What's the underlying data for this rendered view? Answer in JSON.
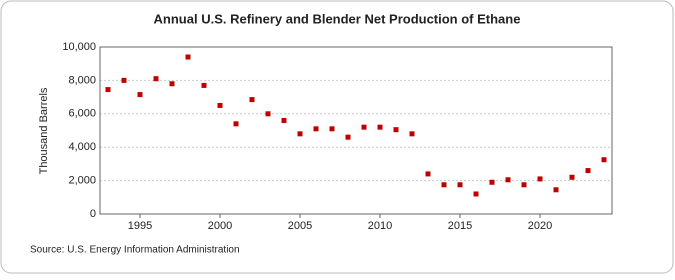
{
  "chart_data": {
    "type": "scatter",
    "title": "Annual U.S. Refinery and Blender Net Production of Ethane",
    "y_label": "Thousand Barrels",
    "source": "Source: U.S. Energy Information Administration",
    "x": [
      1993,
      1994,
      1995,
      1996,
      1997,
      1998,
      1999,
      2000,
      2001,
      2002,
      2003,
      2004,
      2005,
      2006,
      2007,
      2008,
      2009,
      2010,
      2011,
      2012,
      2013,
      2014,
      2015,
      2016,
      2017,
      2018,
      2019,
      2020,
      2021,
      2022,
      2023,
      2024
    ],
    "series": [
      {
        "name": "Ethane",
        "color": "#c00000",
        "values": [
          7450,
          8000,
          7150,
          8100,
          7800,
          9400,
          7700,
          6500,
          5400,
          6850,
          6000,
          5600,
          4800,
          5100,
          5100,
          4600,
          5200,
          5200,
          5050,
          4800,
          2400,
          1750,
          1750,
          1200,
          1900,
          2050,
          1750,
          2100,
          1450,
          2200,
          2600,
          3250
        ]
      }
    ],
    "xlim": [
      1992.5,
      2024.5
    ],
    "xticks": [
      1995,
      2000,
      2005,
      2010,
      2015,
      2020
    ],
    "ylim": [
      0,
      10000
    ],
    "yticks": [
      0,
      {
        "value": 2000,
        "label": "2,000"
      },
      {
        "value": 4000,
        "label": "4,000"
      },
      {
        "value": 6000,
        "label": "6,000"
      },
      {
        "value": 8000,
        "label": "8,000"
      },
      {
        "value": 10000,
        "label": "10,000"
      }
    ],
    "grid": true
  }
}
